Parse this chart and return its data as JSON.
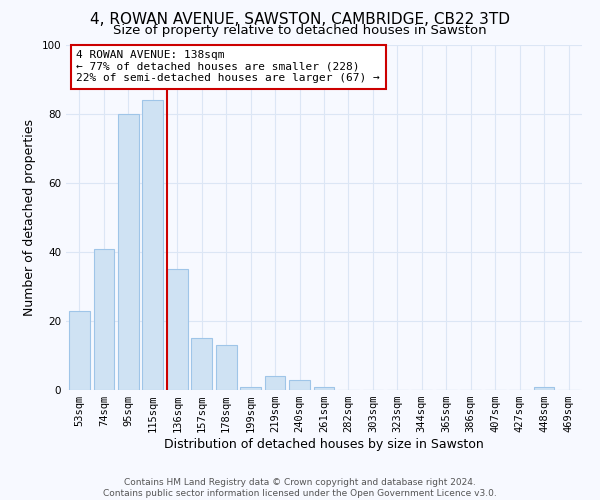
{
  "title": "4, ROWAN AVENUE, SAWSTON, CAMBRIDGE, CB22 3TD",
  "subtitle": "Size of property relative to detached houses in Sawston",
  "xlabel": "Distribution of detached houses by size in Sawston",
  "ylabel": "Number of detached properties",
  "bar_labels": [
    "53sqm",
    "74sqm",
    "95sqm",
    "115sqm",
    "136sqm",
    "157sqm",
    "178sqm",
    "199sqm",
    "219sqm",
    "240sqm",
    "261sqm",
    "282sqm",
    "303sqm",
    "323sqm",
    "344sqm",
    "365sqm",
    "386sqm",
    "407sqm",
    "427sqm",
    "448sqm",
    "469sqm"
  ],
  "bar_values": [
    23,
    41,
    80,
    84,
    35,
    15,
    13,
    1,
    4,
    3,
    1,
    0,
    0,
    0,
    0,
    0,
    0,
    0,
    0,
    1,
    0
  ],
  "bar_color": "#cfe2f3",
  "bar_edge_color": "#9fc5e8",
  "highlight_line_index": 4,
  "highlight_color": "#cc0000",
  "ylim": [
    0,
    100
  ],
  "yticks": [
    0,
    20,
    40,
    60,
    80,
    100
  ],
  "annotation_text_line1": "4 ROWAN AVENUE: 138sqm",
  "annotation_text_line2": "← 77% of detached houses are smaller (228)",
  "annotation_text_line3": "22% of semi-detached houses are larger (67) →",
  "footer_line1": "Contains HM Land Registry data © Crown copyright and database right 2024.",
  "footer_line2": "Contains public sector information licensed under the Open Government Licence v3.0.",
  "grid_color": "#dce6f5",
  "background_color": "#f7f9ff",
  "title_fontsize": 11,
  "subtitle_fontsize": 9.5,
  "xlabel_fontsize": 9,
  "ylabel_fontsize": 9,
  "tick_fontsize": 7.5,
  "annotation_fontsize": 8,
  "footer_fontsize": 6.5
}
